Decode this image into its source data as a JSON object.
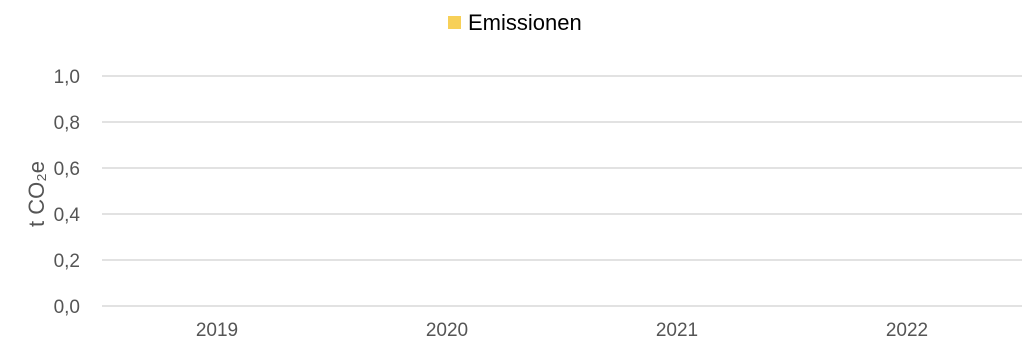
{
  "chart_data": {
    "type": "bar",
    "categories": [
      "2019",
      "2020",
      "2021",
      "2022"
    ],
    "series": [
      {
        "name": "Emissionen",
        "values": [
          0,
          0,
          0,
          0
        ],
        "color": "#f7d058"
      }
    ],
    "ylabel": "t CO₂e",
    "ylim": [
      0,
      1.0
    ],
    "yticks": [
      "0,0",
      "0,2",
      "0,4",
      "0,6",
      "0,8",
      "1,0"
    ],
    "grid": true,
    "legend_position": "top-center"
  }
}
